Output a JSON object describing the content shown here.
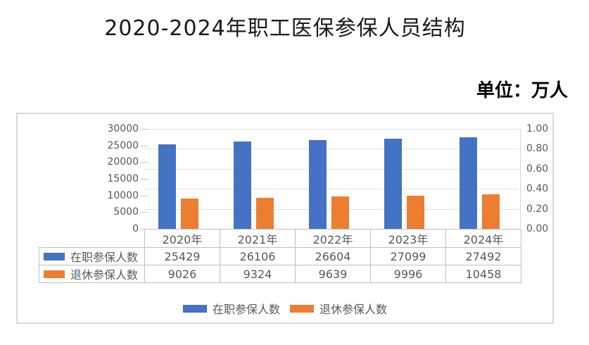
{
  "title": "2020-2024年职工医保参保人员结构",
  "unit_label": "单位：万人",
  "colors": {
    "primary": "#4472C4",
    "secondary": "#ED7D31",
    "text_muted": "#595959",
    "grid": "#E2E2E2",
    "table_border": "#BFBFBF",
    "frame_border": "#D9D9D9"
  },
  "chart_data": {
    "type": "bar",
    "title": "2020-2024年职工医保参保人员结构",
    "unit": "单位：万人",
    "categories": [
      "2020年",
      "2021年",
      "2022年",
      "2023年",
      "2024年"
    ],
    "series": [
      {
        "name": "在职参保人数",
        "color": "#4472C4",
        "values": [
          25429,
          26106,
          26604,
          27099,
          27492
        ]
      },
      {
        "name": "退休参保人数",
        "color": "#ED7D31",
        "values": [
          9026,
          9324,
          9639,
          9996,
          10458
        ]
      }
    ],
    "left_axis": {
      "min": 0,
      "max": 30000,
      "step": 5000,
      "ticks": [
        "30000",
        "25000",
        "20000",
        "15000",
        "10000",
        "5000",
        "0"
      ]
    },
    "right_axis": {
      "min": 0.0,
      "max": 1.0,
      "step": 0.2,
      "ticks": [
        "1.00",
        "0.80",
        "0.60",
        "0.40",
        "0.20",
        "0.00"
      ]
    },
    "grid": true,
    "legend_position": "bottom",
    "data_table_attached": true
  }
}
